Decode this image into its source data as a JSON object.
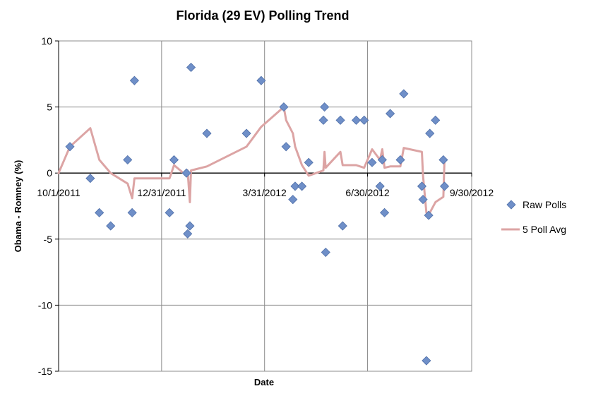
{
  "chart_data": {
    "type": "scatter",
    "title": "Florida (29 EV) Polling Trend",
    "xlabel": "Date",
    "ylabel": "Obama - Romney (%)",
    "xlim": [
      "2011-10-01",
      "2012-09-30"
    ],
    "ylim": [
      -15,
      10
    ],
    "yticks": [
      -15,
      -10,
      -5,
      0,
      5,
      10
    ],
    "xticks": [
      {
        "date": "2011-10-01",
        "label": "10/1/2011"
      },
      {
        "date": "2011-12-31",
        "label": "12/31/2011"
      },
      {
        "date": "2012-03-31",
        "label": "3/31/2012"
      },
      {
        "date": "2012-06-30",
        "label": "6/30/2012"
      },
      {
        "date": "2012-09-30",
        "label": "9/30/2012"
      }
    ],
    "grid": true,
    "legend_position": "right",
    "series": [
      {
        "name": "Raw Polls",
        "kind": "scatter",
        "color": "#6f8fc8",
        "points": [
          {
            "x": "2011-10-11",
            "y": 2
          },
          {
            "x": "2011-10-29",
            "y": -0.4
          },
          {
            "x": "2011-11-06",
            "y": -3
          },
          {
            "x": "2011-11-16",
            "y": -4
          },
          {
            "x": "2011-12-01",
            "y": 1
          },
          {
            "x": "2011-12-05",
            "y": -3
          },
          {
            "x": "2011-12-07",
            "y": 7
          },
          {
            "x": "2012-01-07",
            "y": -3
          },
          {
            "x": "2012-01-11",
            "y": 1
          },
          {
            "x": "2012-01-22",
            "y": 0
          },
          {
            "x": "2012-01-23",
            "y": -4.6
          },
          {
            "x": "2012-01-25",
            "y": -4
          },
          {
            "x": "2012-01-26",
            "y": 8
          },
          {
            "x": "2012-02-09",
            "y": 3
          },
          {
            "x": "2012-03-15",
            "y": 3
          },
          {
            "x": "2012-03-28",
            "y": 7
          },
          {
            "x": "2012-04-17",
            "y": 5
          },
          {
            "x": "2012-04-19",
            "y": 2
          },
          {
            "x": "2012-04-25",
            "y": -2
          },
          {
            "x": "2012-04-27",
            "y": -1
          },
          {
            "x": "2012-05-03",
            "y": -1
          },
          {
            "x": "2012-05-09",
            "y": 0.8
          },
          {
            "x": "2012-05-22",
            "y": 4
          },
          {
            "x": "2012-05-23",
            "y": 5
          },
          {
            "x": "2012-05-24",
            "y": -6
          },
          {
            "x": "2012-06-06",
            "y": 4
          },
          {
            "x": "2012-06-08",
            "y": -4
          },
          {
            "x": "2012-06-20",
            "y": 4
          },
          {
            "x": "2012-06-27",
            "y": 4
          },
          {
            "x": "2012-07-04",
            "y": 0.8
          },
          {
            "x": "2012-07-11",
            "y": -1
          },
          {
            "x": "2012-07-13",
            "y": 1
          },
          {
            "x": "2012-07-15",
            "y": -3
          },
          {
            "x": "2012-07-20",
            "y": 4.5
          },
          {
            "x": "2012-07-29",
            "y": 1
          },
          {
            "x": "2012-08-01",
            "y": 6
          },
          {
            "x": "2012-08-17",
            "y": -1
          },
          {
            "x": "2012-08-18",
            "y": -2
          },
          {
            "x": "2012-08-21",
            "y": -14.2
          },
          {
            "x": "2012-08-23",
            "y": -3.2
          },
          {
            "x": "2012-08-24",
            "y": 3
          },
          {
            "x": "2012-08-29",
            "y": 4
          },
          {
            "x": "2012-09-05",
            "y": 1
          },
          {
            "x": "2012-09-06",
            "y": -1
          }
        ]
      },
      {
        "name": "5 Poll Avg",
        "kind": "line",
        "color": "#dca4a4",
        "points": [
          {
            "x": "2011-10-01",
            "y": 0
          },
          {
            "x": "2011-10-11",
            "y": 2
          },
          {
            "x": "2011-10-29",
            "y": 3.4
          },
          {
            "x": "2011-11-06",
            "y": 1
          },
          {
            "x": "2011-11-16",
            "y": 0
          },
          {
            "x": "2011-12-01",
            "y": -0.8
          },
          {
            "x": "2011-12-05",
            "y": -1.9
          },
          {
            "x": "2011-12-07",
            "y": -0.4
          },
          {
            "x": "2012-01-07",
            "y": -0.4
          },
          {
            "x": "2012-01-11",
            "y": 0.6
          },
          {
            "x": "2012-01-22",
            "y": -0.2
          },
          {
            "x": "2012-01-23",
            "y": 0.2
          },
          {
            "x": "2012-01-25",
            "y": -2.2
          },
          {
            "x": "2012-01-26",
            "y": 0.2
          },
          {
            "x": "2012-02-09",
            "y": 0.5
          },
          {
            "x": "2012-03-15",
            "y": 2
          },
          {
            "x": "2012-03-28",
            "y": 3.5
          },
          {
            "x": "2012-04-17",
            "y": 5
          },
          {
            "x": "2012-04-19",
            "y": 4
          },
          {
            "x": "2012-04-25",
            "y": 3
          },
          {
            "x": "2012-04-27",
            "y": 2
          },
          {
            "x": "2012-05-03",
            "y": 0.6
          },
          {
            "x": "2012-05-09",
            "y": -0.2
          },
          {
            "x": "2012-05-22",
            "y": 0.2
          },
          {
            "x": "2012-05-23",
            "y": 1.6
          },
          {
            "x": "2012-05-24",
            "y": 0.4
          },
          {
            "x": "2012-06-06",
            "y": 1.6
          },
          {
            "x": "2012-06-08",
            "y": 0.6
          },
          {
            "x": "2012-06-20",
            "y": 0.6
          },
          {
            "x": "2012-06-27",
            "y": 0.4
          },
          {
            "x": "2012-07-04",
            "y": 1.8
          },
          {
            "x": "2012-07-11",
            "y": 1
          },
          {
            "x": "2012-07-13",
            "y": 1.8
          },
          {
            "x": "2012-07-15",
            "y": 0.4
          },
          {
            "x": "2012-07-20",
            "y": 0.5
          },
          {
            "x": "2012-07-29",
            "y": 0.5
          },
          {
            "x": "2012-08-01",
            "y": 1.9
          },
          {
            "x": "2012-08-17",
            "y": 1.6
          },
          {
            "x": "2012-08-18",
            "y": -0.2
          },
          {
            "x": "2012-08-21",
            "y": -3
          },
          {
            "x": "2012-08-23",
            "y": -3.4
          },
          {
            "x": "2012-08-24",
            "y": -3
          },
          {
            "x": "2012-08-29",
            "y": -2.2
          },
          {
            "x": "2012-09-05",
            "y": -1.8
          },
          {
            "x": "2012-09-06",
            "y": 1
          }
        ]
      }
    ]
  }
}
